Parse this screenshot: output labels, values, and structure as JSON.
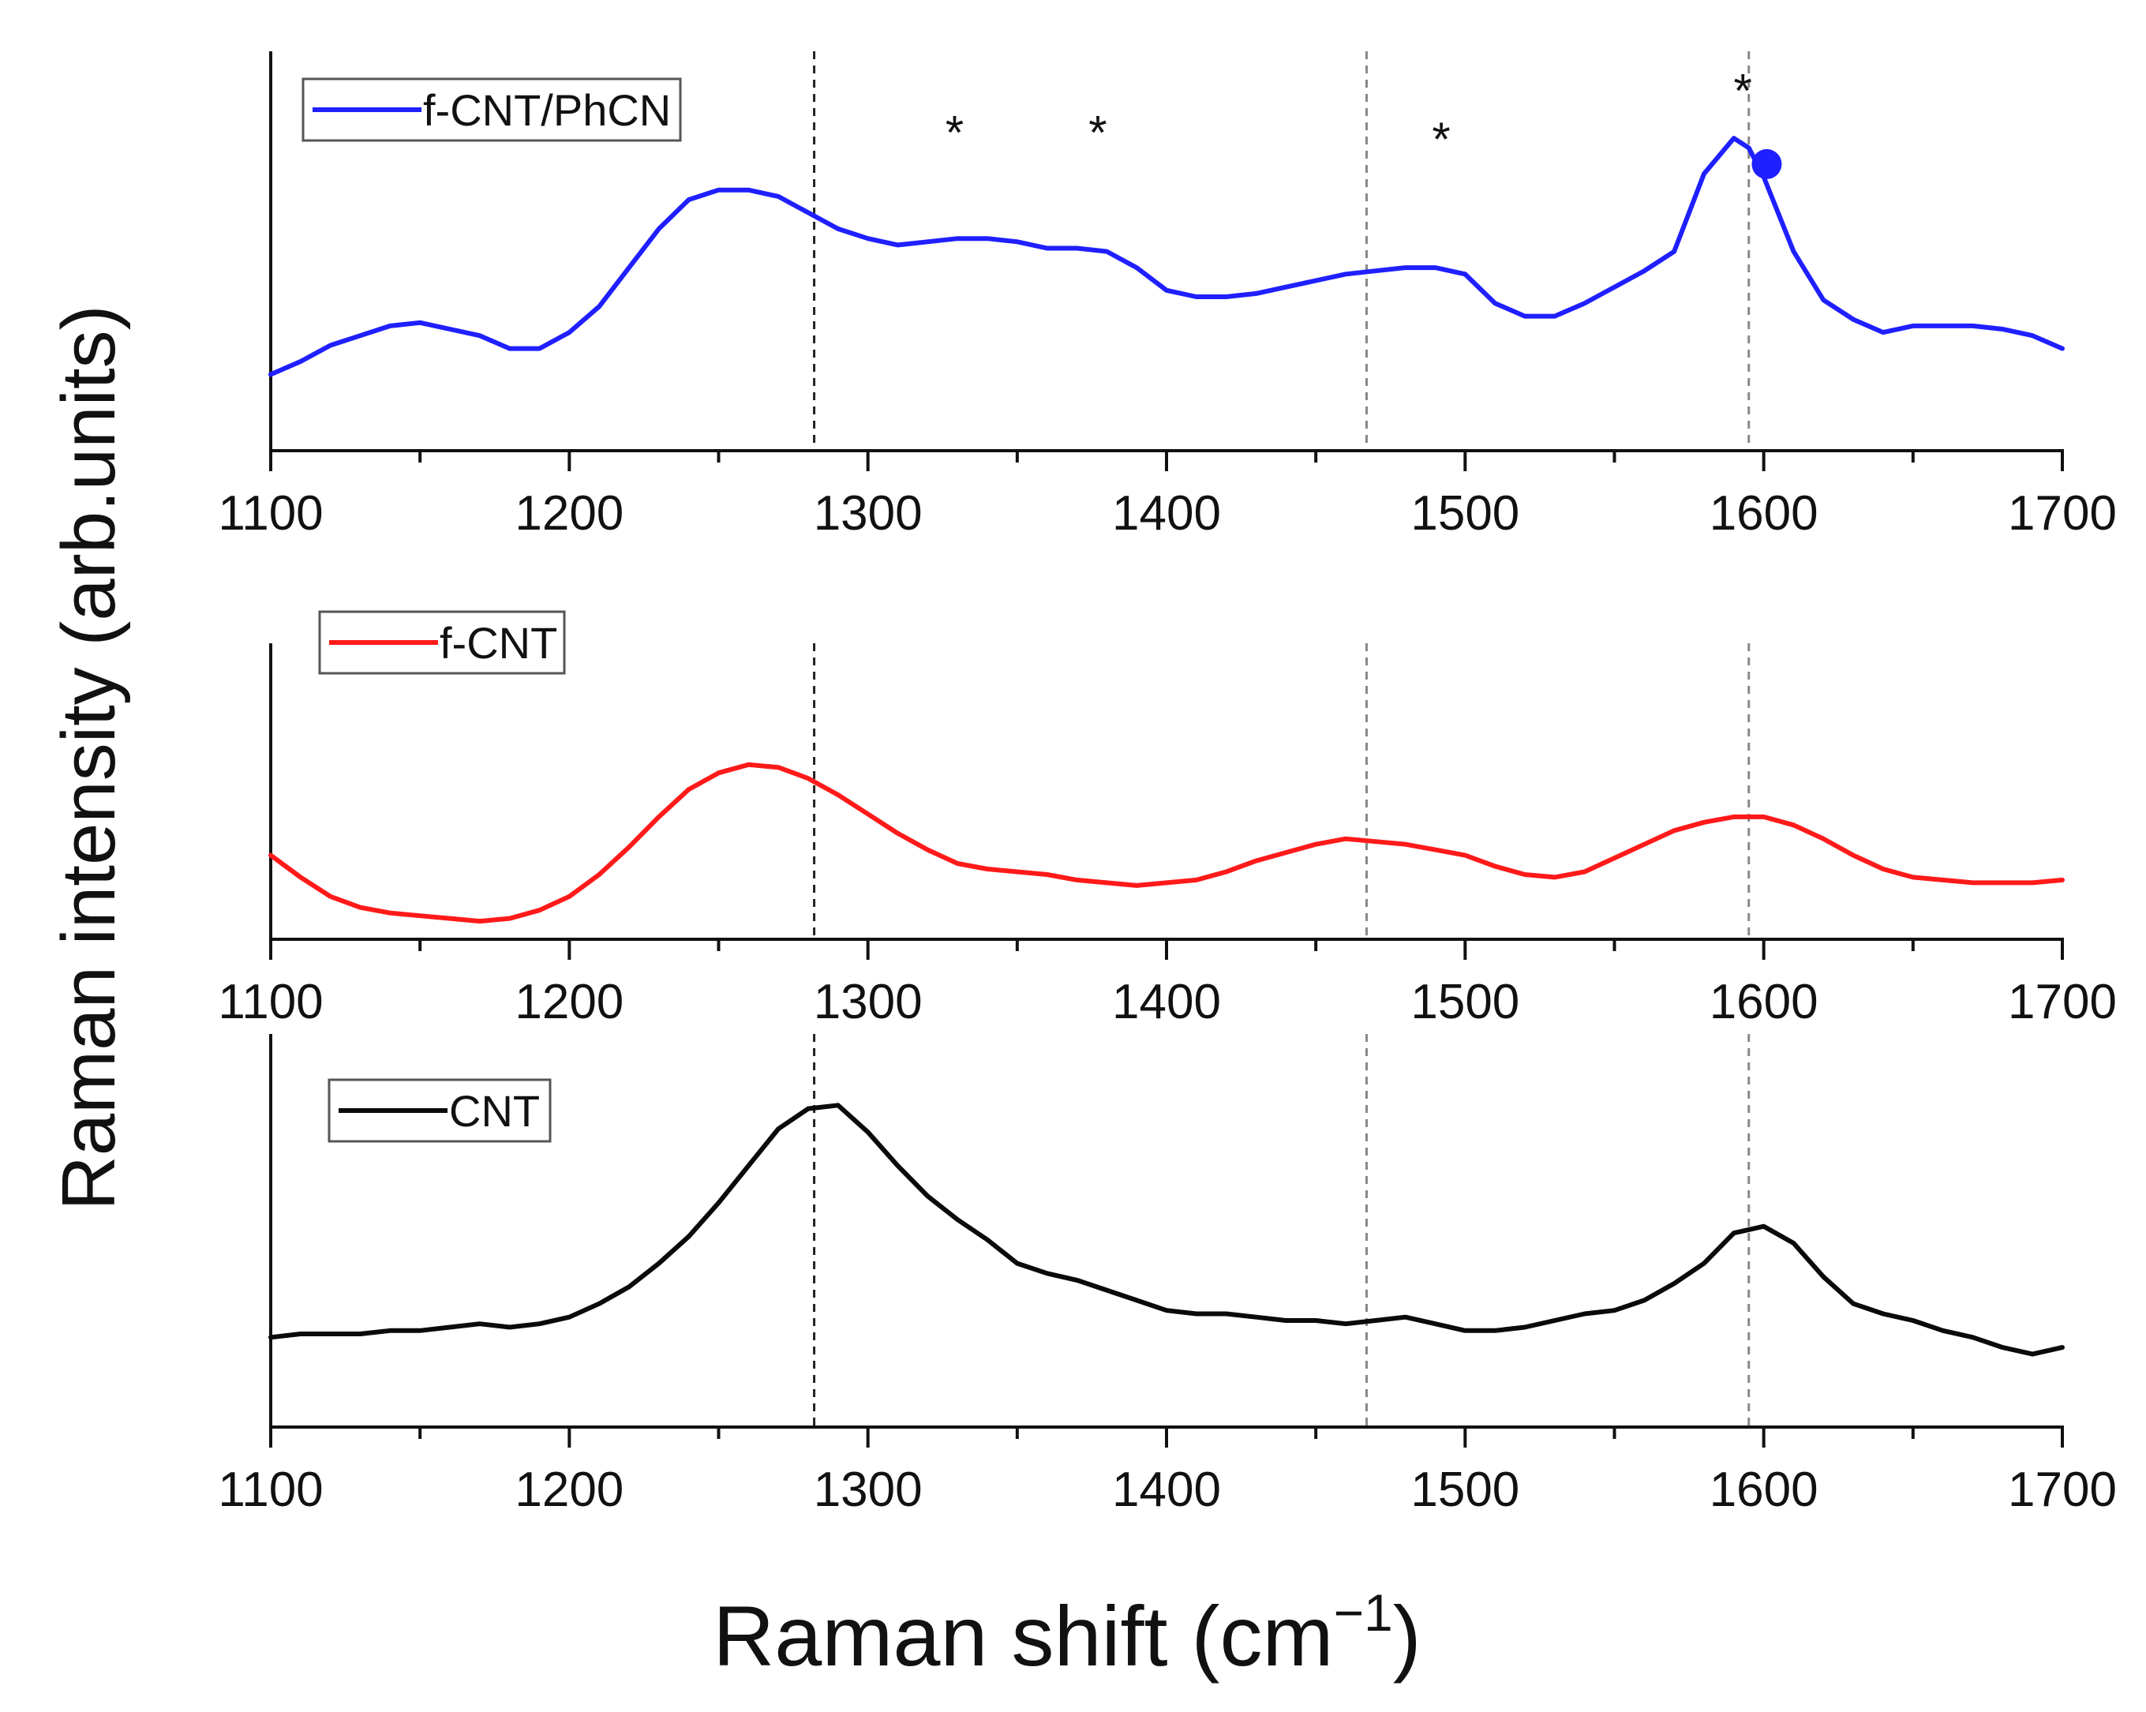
{
  "chart_data": {
    "type": "line",
    "y_axis_label": "Raman intensity (arb.units)",
    "x_axis_label_main": "Raman shift (cm",
    "x_axis_label_sup": "−1",
    "x_axis_label_close": ")",
    "xlim": [
      1100,
      1700
    ],
    "x_ticks": [
      1100,
      1200,
      1300,
      1400,
      1500,
      1600,
      1700
    ],
    "reference_lines_x": [
      1282,
      1467,
      1595
    ],
    "panels": [
      {
        "legend": "f-CNT/PhCN",
        "color": "#1f1fff",
        "ylim": [
          0,
          1
        ],
        "x": [
          1100,
          1110,
          1120,
          1130,
          1140,
          1150,
          1160,
          1170,
          1180,
          1190,
          1200,
          1210,
          1220,
          1230,
          1240,
          1250,
          1260,
          1270,
          1280,
          1290,
          1300,
          1310,
          1320,
          1330,
          1340,
          1350,
          1360,
          1370,
          1380,
          1390,
          1400,
          1410,
          1420,
          1430,
          1440,
          1450,
          1460,
          1470,
          1480,
          1490,
          1500,
          1510,
          1520,
          1530,
          1540,
          1550,
          1560,
          1570,
          1580,
          1590,
          1595,
          1600,
          1610,
          1620,
          1630,
          1640,
          1650,
          1660,
          1670,
          1680,
          1690,
          1700
        ],
        "y": [
          0.16,
          0.2,
          0.25,
          0.28,
          0.31,
          0.32,
          0.3,
          0.28,
          0.24,
          0.24,
          0.29,
          0.37,
          0.49,
          0.61,
          0.7,
          0.73,
          0.73,
          0.71,
          0.66,
          0.61,
          0.58,
          0.56,
          0.57,
          0.58,
          0.58,
          0.57,
          0.55,
          0.55,
          0.54,
          0.49,
          0.42,
          0.4,
          0.4,
          0.41,
          0.43,
          0.45,
          0.47,
          0.48,
          0.49,
          0.49,
          0.47,
          0.38,
          0.34,
          0.34,
          0.38,
          0.43,
          0.48,
          0.54,
          0.78,
          0.89,
          0.86,
          0.77,
          0.54,
          0.39,
          0.33,
          0.29,
          0.31,
          0.31,
          0.31,
          0.3,
          0.28,
          0.24
        ],
        "marker": {
          "x": 1601,
          "y": 0.81
        },
        "annotations": [
          {
            "text": "*",
            "x": 1329,
            "y": 0.93
          },
          {
            "text": "*",
            "x": 1377,
            "y": 0.93
          },
          {
            "text": "*",
            "x": 1492,
            "y": 0.91
          },
          {
            "text": "*",
            "x": 1593,
            "y": 1.06
          }
        ]
      },
      {
        "legend": "f-CNT",
        "color": "#ff1a1a",
        "ylim": [
          0,
          1
        ],
        "x": [
          1100,
          1110,
          1120,
          1130,
          1140,
          1150,
          1160,
          1170,
          1180,
          1190,
          1200,
          1210,
          1220,
          1230,
          1240,
          1250,
          1260,
          1270,
          1280,
          1290,
          1300,
          1310,
          1320,
          1330,
          1340,
          1350,
          1360,
          1370,
          1380,
          1390,
          1400,
          1410,
          1420,
          1430,
          1440,
          1450,
          1460,
          1470,
          1480,
          1490,
          1500,
          1510,
          1520,
          1530,
          1540,
          1550,
          1560,
          1570,
          1580,
          1590,
          1600,
          1610,
          1620,
          1630,
          1640,
          1650,
          1660,
          1670,
          1680,
          1690,
          1700
        ],
        "y": [
          0.3,
          0.22,
          0.15,
          0.11,
          0.09,
          0.08,
          0.07,
          0.06,
          0.07,
          0.1,
          0.15,
          0.23,
          0.33,
          0.44,
          0.54,
          0.6,
          0.63,
          0.62,
          0.58,
          0.52,
          0.45,
          0.38,
          0.32,
          0.27,
          0.25,
          0.24,
          0.23,
          0.21,
          0.2,
          0.19,
          0.2,
          0.21,
          0.24,
          0.28,
          0.31,
          0.34,
          0.36,
          0.35,
          0.34,
          0.32,
          0.3,
          0.26,
          0.23,
          0.22,
          0.24,
          0.29,
          0.34,
          0.39,
          0.42,
          0.44,
          0.44,
          0.41,
          0.36,
          0.3,
          0.25,
          0.22,
          0.21,
          0.2,
          0.2,
          0.2,
          0.21
        ],
        "marker": null,
        "annotations": []
      },
      {
        "legend": "CNT",
        "color": "#0a0a0a",
        "ylim": [
          0,
          1
        ],
        "x": [
          1100,
          1110,
          1120,
          1130,
          1140,
          1150,
          1160,
          1170,
          1180,
          1190,
          1200,
          1210,
          1220,
          1230,
          1240,
          1250,
          1260,
          1270,
          1280,
          1290,
          1300,
          1310,
          1320,
          1330,
          1340,
          1350,
          1360,
          1370,
          1380,
          1390,
          1400,
          1410,
          1420,
          1430,
          1440,
          1450,
          1460,
          1470,
          1480,
          1490,
          1500,
          1510,
          1520,
          1530,
          1540,
          1550,
          1560,
          1570,
          1580,
          1590,
          1600,
          1610,
          1620,
          1630,
          1640,
          1650,
          1660,
          1670,
          1680,
          1690,
          1700
        ],
        "y": [
          0.22,
          0.23,
          0.23,
          0.23,
          0.24,
          0.24,
          0.25,
          0.26,
          0.25,
          0.26,
          0.28,
          0.32,
          0.37,
          0.44,
          0.52,
          0.62,
          0.73,
          0.84,
          0.9,
          0.91,
          0.83,
          0.73,
          0.64,
          0.57,
          0.51,
          0.44,
          0.41,
          0.39,
          0.36,
          0.33,
          0.3,
          0.29,
          0.29,
          0.28,
          0.27,
          0.27,
          0.26,
          0.27,
          0.28,
          0.26,
          0.24,
          0.24,
          0.25,
          0.27,
          0.29,
          0.3,
          0.33,
          0.38,
          0.44,
          0.53,
          0.55,
          0.5,
          0.4,
          0.32,
          0.29,
          0.27,
          0.24,
          0.22,
          0.19,
          0.17,
          0.19
        ],
        "marker": null,
        "annotations": []
      }
    ]
  }
}
